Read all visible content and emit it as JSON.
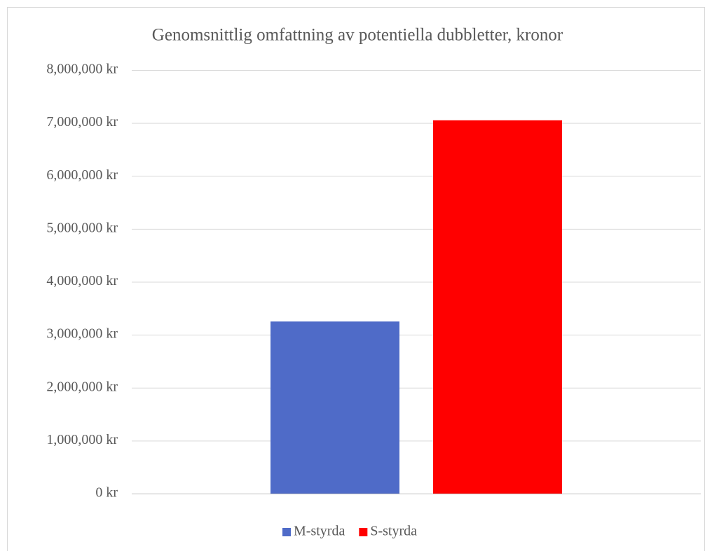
{
  "chart_data": {
    "type": "bar",
    "title": "Genomsnittlig omfattning av potentiella dubbletter, kronor",
    "categories": [
      null
    ],
    "series": [
      {
        "name": "M-styrda",
        "color": "#4f6bc8",
        "values": [
          3250000
        ]
      },
      {
        "name": "S-styrda",
        "color": "#ff0000",
        "values": [
          7050000
        ]
      }
    ],
    "ylim": [
      0,
      8000000
    ],
    "yticks": [
      {
        "value": 0,
        "label": "0 kr"
      },
      {
        "value": 1000000,
        "label": "1,000,000 kr"
      },
      {
        "value": 2000000,
        "label": "2,000,000 kr"
      },
      {
        "value": 3000000,
        "label": "3,000,000 kr"
      },
      {
        "value": 4000000,
        "label": "4,000,000 kr"
      },
      {
        "value": 5000000,
        "label": "5,000,000 kr"
      },
      {
        "value": 6000000,
        "label": "6,000,000 kr"
      },
      {
        "value": 7000000,
        "label": "7,000,000 kr"
      },
      {
        "value": 8000000,
        "label": "8,000,000 kr"
      }
    ],
    "grid": true,
    "legend": "bottom"
  }
}
